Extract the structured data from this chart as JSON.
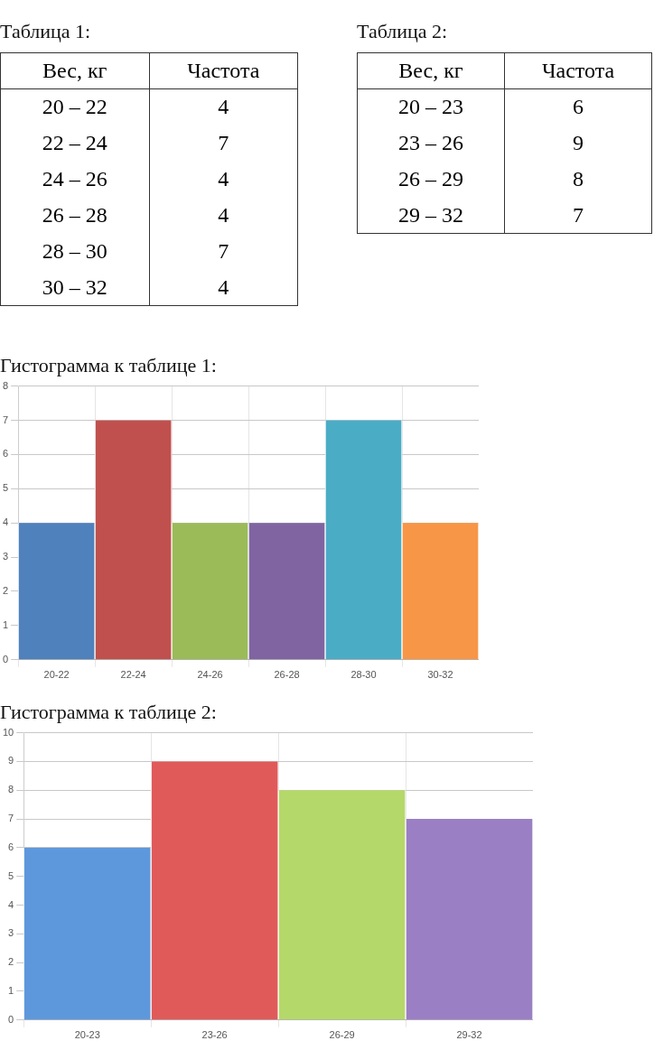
{
  "chart_data": [
    {
      "type": "other",
      "title": "Таблица 1:",
      "xlabel": "Вес, кг",
      "ylabel": "Частота",
      "categories": [
        "20 – 22",
        "22 – 24",
        "24 – 26",
        "26 – 28",
        "28 – 30",
        "30 – 32"
      ],
      "values": [
        4,
        7,
        4,
        4,
        7,
        4
      ],
      "data_labels": true
    },
    {
      "type": "other",
      "title": "Таблица 2:",
      "xlabel": "Вес, кг",
      "ylabel": "Частота",
      "categories": [
        "20 – 23",
        "23 – 26",
        "26 – 29",
        "29 – 32"
      ],
      "values": [
        6,
        9,
        8,
        7
      ],
      "data_labels": true
    },
    {
      "type": "bar",
      "title": "Гистограмма к таблице 1:",
      "categories": [
        "20-22",
        "22-24",
        "24-26",
        "26-28",
        "28-30",
        "30-32"
      ],
      "values": [
        4,
        7,
        4,
        4,
        7,
        4
      ],
      "colors": [
        "#4f81bd",
        "#c0504d",
        "#9bbb59",
        "#8064a2",
        "#4bacc6",
        "#f79646"
      ],
      "ylim": [
        0,
        8
      ],
      "yticks": [
        0,
        1,
        2,
        3,
        4,
        5,
        6,
        7,
        8
      ],
      "grid": true
    },
    {
      "type": "bar",
      "title": "Гистограмма к таблице 2:",
      "categories": [
        "20-23",
        "23-26",
        "26-29",
        "29-32"
      ],
      "values": [
        6,
        9,
        8,
        7
      ],
      "colors": [
        "#5e98dc",
        "#e05a5a",
        "#b5d86a",
        "#9b7fc4"
      ],
      "ylim": [
        0,
        10
      ],
      "yticks": [
        0,
        1,
        2,
        3,
        4,
        5,
        6,
        7,
        8,
        9,
        10
      ],
      "grid": true
    }
  ]
}
